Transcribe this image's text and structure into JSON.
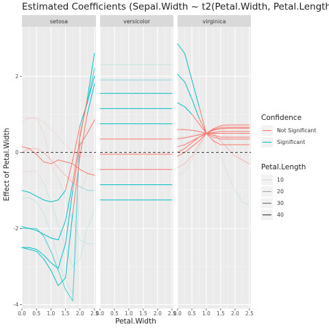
{
  "chart_data": {
    "type": "line",
    "title": "Estimated Coefficients (Sepal.Width ~ t2(Petal.Width, Petal.Length,",
    "xlabel": "Petal.Width",
    "ylabel": "Effect of Petal.Width",
    "facets": [
      "setosa",
      "versicolor",
      "virginica"
    ],
    "xlim": [
      0,
      2.55
    ],
    "ylim": [
      -4.1,
      3.3
    ],
    "x_ticks": [
      0.0,
      0.5,
      1.0,
      1.5,
      2.0,
      2.5
    ],
    "x_tick_labels": [
      "0.0",
      "0.5",
      "1.0",
      "1.5",
      "2.0",
      "2.5"
    ],
    "y_ticks": [
      -4,
      -2,
      0,
      2
    ],
    "y_tick_labels": [
      "-4",
      "-2",
      "0",
      "2"
    ],
    "reference_line_y": 0,
    "x": [
      0,
      0.25,
      0.5,
      0.75,
      1.0,
      1.25,
      1.5,
      1.75,
      2.0,
      2.25,
      2.5
    ],
    "legend": {
      "confidence": {
        "title": "Confidence",
        "entries": [
          {
            "label": "Not Significant",
            "color": "#F8766D"
          },
          {
            "label": "Significant",
            "color": "#00BFC4"
          }
        ]
      },
      "petal_length": {
        "title": "Petal.Length",
        "entries": [
          {
            "label": "10",
            "opacity": 0.15
          },
          {
            "label": "20",
            "opacity": 0.4
          },
          {
            "label": "30",
            "opacity": 0.7
          },
          {
            "label": "40",
            "opacity": 1.0
          }
        ]
      }
    },
    "series": [
      {
        "facet": "setosa",
        "petal_length": 10,
        "y": [
          0.8,
          0.9,
          0.9,
          0.5,
          -0.3,
          -0.7,
          -1.2,
          -1.8,
          -2.3,
          -2.4,
          -2.4
        ]
      },
      {
        "facet": "setosa",
        "petal_length": 10,
        "y": [
          -0.5,
          -0.5,
          -0.5,
          -0.8,
          -1.3,
          -1.9,
          -2.5,
          -3.0,
          -2.8,
          -2.0,
          -1.5
        ]
      },
      {
        "facet": "setosa",
        "petal_length": 10,
        "y": [
          -1.2,
          -1.2,
          -1.3,
          -1.6,
          -2.1,
          -2.8,
          -3.4,
          -3.7,
          -1.0,
          -0.6,
          -0.4
        ]
      },
      {
        "facet": "setosa",
        "petal_length": 10,
        "y": [
          0.9,
          0.9,
          0.9,
          0.8,
          0.6,
          0.4,
          0.2,
          0.0,
          -0.1,
          -0.1,
          -0.1
        ]
      },
      {
        "facet": "setosa",
        "petal_length": 20,
        "y": [
          0.0,
          0.1,
          0.1,
          0.0,
          -0.2,
          -0.4,
          -0.6,
          -0.8,
          -0.9,
          -1.0,
          -1.0
        ]
      },
      {
        "facet": "setosa",
        "petal_length": 30,
        "y": [
          -2.0,
          -2.0,
          -2.0,
          -2.2,
          -2.6,
          -3.1,
          -3.6,
          -3.9,
          0.5,
          1.3,
          2.2
        ]
      },
      {
        "facet": "setosa",
        "petal_length": 40,
        "y": [
          0.15,
          0.1,
          -0.05,
          -0.25,
          -0.3,
          -0.2,
          -0.25,
          -0.3,
          -0.45,
          -0.55,
          -0.6
        ]
      },
      {
        "facet": "setosa",
        "petal_length": 40,
        "y": [
          -1.0,
          -1.05,
          -1.15,
          -1.25,
          -1.3,
          -1.25,
          -1.0,
          -0.2,
          0.7,
          1.3,
          2.0
        ]
      },
      {
        "facet": "setosa",
        "petal_length": 40,
        "y": [
          -1.95,
          -2.0,
          -2.05,
          -2.15,
          -2.25,
          -2.3,
          -1.8,
          -0.8,
          0.4,
          1.4,
          2.6
        ]
      },
      {
        "facet": "setosa",
        "petal_length": 40,
        "y": [
          -2.5,
          -2.55,
          -2.6,
          -2.8,
          -3.1,
          -3.5,
          -3.3,
          -1.6,
          -0.1,
          1.0,
          1.8
        ]
      },
      {
        "facet": "setosa",
        "petal_length": 40,
        "y": [
          -2.5,
          -2.5,
          -2.55,
          -2.7,
          -2.9,
          -3.05,
          -2.4,
          -1.0,
          0.2,
          0.5,
          0.85
        ]
      },
      {
        "facet": "versicolor",
        "petal_length": 10,
        "y": [
          2.3,
          2.3,
          2.3,
          2.3,
          2.3,
          2.3,
          2.3,
          2.3,
          2.3,
          2.3,
          2.3
        ]
      },
      {
        "facet": "versicolor",
        "petal_length": 20,
        "y": [
          1.9,
          1.9,
          1.9,
          1.9,
          1.9,
          1.9,
          1.9,
          1.9,
          1.9,
          1.9,
          1.9
        ]
      },
      {
        "facet": "versicolor",
        "petal_length": 40,
        "y": [
          1.55,
          1.55,
          1.55,
          1.55,
          1.55,
          1.55,
          1.55,
          1.55,
          1.55,
          1.55,
          1.55
        ]
      },
      {
        "facet": "versicolor",
        "petal_length": 40,
        "y": [
          1.15,
          1.15,
          1.15,
          1.15,
          1.15,
          1.15,
          1.15,
          1.15,
          1.15,
          1.15,
          1.15
        ]
      },
      {
        "facet": "versicolor",
        "petal_length": 40,
        "y": [
          0.75,
          0.75,
          0.75,
          0.75,
          0.75,
          0.75,
          0.75,
          0.75,
          0.75,
          0.75,
          0.75
        ]
      },
      {
        "facet": "versicolor",
        "petal_length": 40,
        "y": [
          0.35,
          0.35,
          0.35,
          0.35,
          0.35,
          0.35,
          0.35,
          0.35,
          0.35,
          0.35,
          0.35
        ]
      },
      {
        "facet": "versicolor",
        "petal_length": 40,
        "y": [
          -0.05,
          -0.05,
          -0.05,
          -0.05,
          -0.05,
          -0.05,
          -0.05,
          -0.05,
          -0.05,
          -0.05,
          -0.05
        ]
      },
      {
        "facet": "versicolor",
        "petal_length": 40,
        "y": [
          -0.45,
          -0.45,
          -0.45,
          -0.45,
          -0.45,
          -0.45,
          -0.45,
          -0.45,
          -0.45,
          -0.45,
          -0.45
        ]
      },
      {
        "facet": "versicolor",
        "petal_length": 40,
        "y": [
          -0.85,
          -0.85,
          -0.85,
          -0.85,
          -0.85,
          -0.85,
          -0.85,
          -0.85,
          -0.85,
          -0.85,
          -0.85
        ]
      },
      {
        "facet": "versicolor",
        "petal_length": 40,
        "y": [
          -1.25,
          -1.25,
          -1.25,
          -1.25,
          -1.25,
          -1.25,
          -1.25,
          -1.25,
          -1.25,
          -1.25,
          -1.25
        ]
      },
      {
        "facet": "virginica",
        "petal_length": 10,
        "y": [
          -0.6,
          -0.5,
          -0.2,
          0.1,
          0.5,
          0.3,
          -0.1,
          -0.6,
          -1.0,
          -1.3,
          -1.4
        ]
      },
      {
        "facet": "virginica",
        "petal_length": 20,
        "y": [
          -0.4,
          -0.3,
          -0.1,
          0.2,
          0.5,
          0.5,
          0.3,
          0.1,
          -0.1,
          -0.2,
          -0.3
        ]
      },
      {
        "facet": "virginica",
        "petal_length": 40,
        "y": [
          2.85,
          2.6,
          1.9,
          1.2,
          0.5,
          0.3,
          0.2,
          0.2,
          0.2,
          0.2,
          0.2
        ]
      },
      {
        "facet": "virginica",
        "petal_length": 40,
        "y": [
          2.05,
          1.85,
          1.4,
          0.9,
          0.5,
          0.4,
          0.35,
          0.35,
          0.35,
          0.35,
          0.35
        ]
      },
      {
        "facet": "virginica",
        "petal_length": 40,
        "y": [
          0.0,
          0.1,
          0.25,
          0.4,
          0.5,
          0.45,
          0.4,
          0.4,
          0.4,
          0.4,
          0.4
        ]
      },
      {
        "facet": "virginica",
        "petal_length": 40,
        "y": [
          1.3,
          1.2,
          1.0,
          0.75,
          0.5,
          0.5,
          0.5,
          0.5,
          0.5,
          0.5,
          0.5
        ]
      },
      {
        "facet": "virginica",
        "petal_length": 40,
        "y": [
          0.6,
          0.6,
          0.58,
          0.55,
          0.5,
          0.52,
          0.55,
          0.55,
          0.55,
          0.55,
          0.55
        ]
      },
      {
        "facet": "virginica",
        "petal_length": 40,
        "y": [
          0.15,
          0.2,
          0.3,
          0.4,
          0.5,
          0.58,
          0.62,
          0.63,
          0.63,
          0.63,
          0.63
        ]
      },
      {
        "facet": "virginica",
        "petal_length": 40,
        "y": [
          -0.1,
          0.0,
          0.15,
          0.3,
          0.5,
          0.62,
          0.7,
          0.72,
          0.72,
          0.72,
          0.72
        ]
      },
      {
        "facet": "virginica",
        "petal_length": 40,
        "y": [
          0.35,
          0.38,
          0.42,
          0.46,
          0.5,
          0.6,
          0.65,
          0.66,
          0.66,
          0.66,
          0.66
        ]
      },
      {
        "facet": "virginica",
        "petal_length": 10,
        "y": [
          0.4,
          0.4,
          0.45,
          0.48,
          0.5,
          0.6,
          0.7,
          0.3,
          0.0,
          -0.2,
          -0.3
        ]
      }
    ]
  }
}
